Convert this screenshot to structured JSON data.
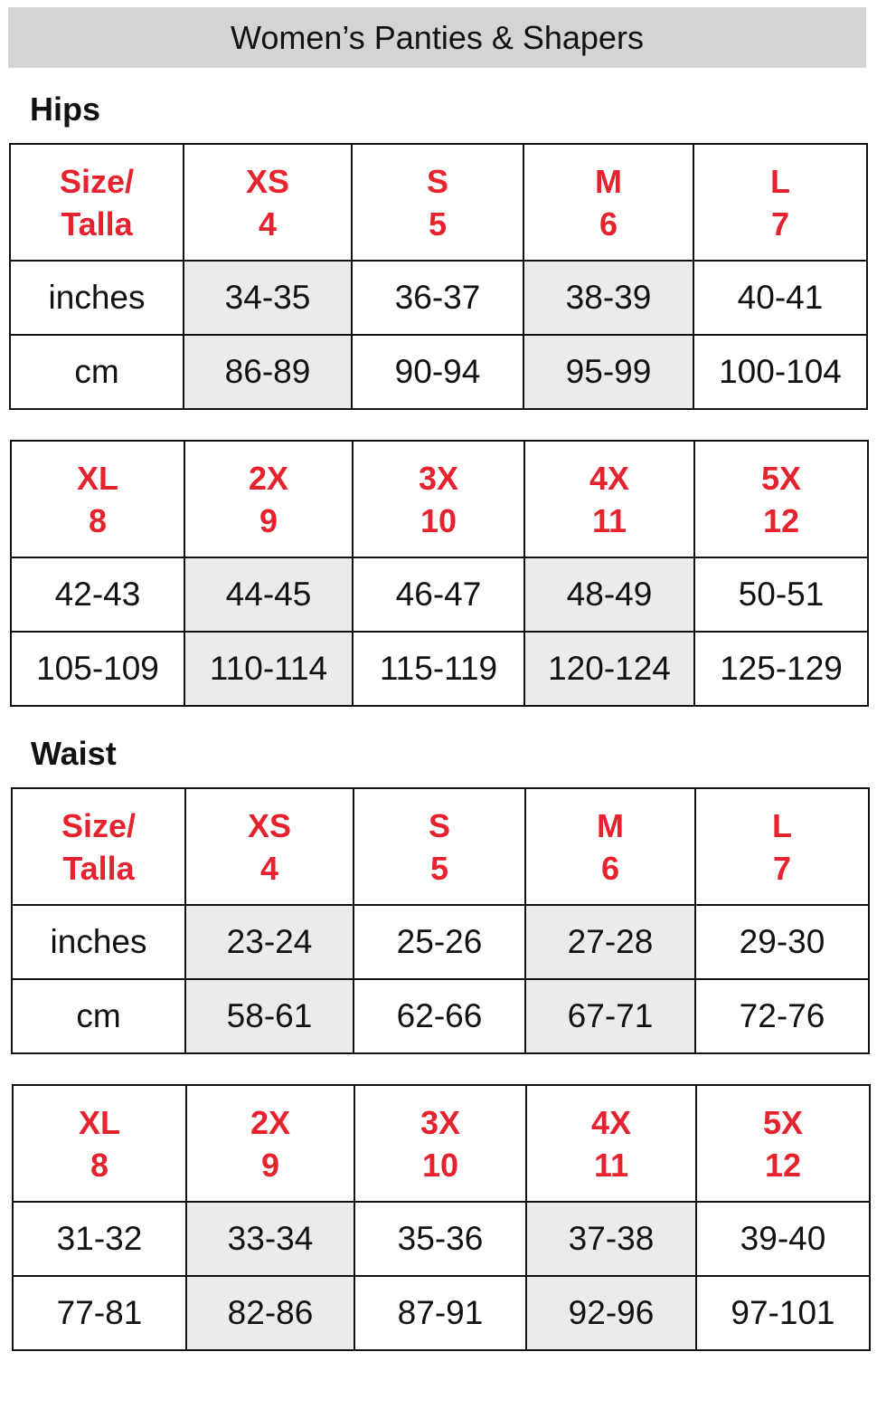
{
  "title": "Women’s Panties & Shapers",
  "colors": {
    "header_red": "#e5232f",
    "shade": "#ebebec",
    "title_bg": "#d4d4d5"
  },
  "sections": [
    {
      "label": "Hips",
      "tables": [
        {
          "header": [
            [
              "Size/",
              "Talla"
            ],
            [
              "XS",
              "4"
            ],
            [
              "S",
              "5"
            ],
            [
              "M",
              "6"
            ],
            [
              "L",
              "7"
            ]
          ],
          "rows": [
            [
              "inches",
              "34-35",
              "36-37",
              "38-39",
              "40-41"
            ],
            [
              "cm",
              "86-89",
              "90-94",
              "95-99",
              "100-104"
            ]
          ]
        },
        {
          "header": [
            [
              "XL",
              "8"
            ],
            [
              "2X",
              "9"
            ],
            [
              "3X",
              "10"
            ],
            [
              "4X",
              "11"
            ],
            [
              "5X",
              "12"
            ]
          ],
          "rows": [
            [
              "42-43",
              "44-45",
              "46-47",
              "48-49",
              "50-51"
            ],
            [
              "105-109",
              "110-114",
              "115-119",
              "120-124",
              "125-129"
            ]
          ]
        }
      ]
    },
    {
      "label": "Waist",
      "tables": [
        {
          "header": [
            [
              "Size/",
              "Talla"
            ],
            [
              "XS",
              "4"
            ],
            [
              "S",
              "5"
            ],
            [
              "M",
              "6"
            ],
            [
              "L",
              "7"
            ]
          ],
          "rows": [
            [
              "inches",
              "23-24",
              "25-26",
              "27-28",
              "29-30"
            ],
            [
              "cm",
              "58-61",
              "62-66",
              "67-71",
              "72-76"
            ]
          ]
        },
        {
          "header": [
            [
              "XL",
              "8"
            ],
            [
              "2X",
              "9"
            ],
            [
              "3X",
              "10"
            ],
            [
              "4X",
              "11"
            ],
            [
              "5X",
              "12"
            ]
          ],
          "rows": [
            [
              "31-32",
              "33-34",
              "35-36",
              "37-38",
              "39-40"
            ],
            [
              "77-81",
              "82-86",
              "87-91",
              "92-96",
              "97-101"
            ]
          ]
        }
      ]
    }
  ]
}
